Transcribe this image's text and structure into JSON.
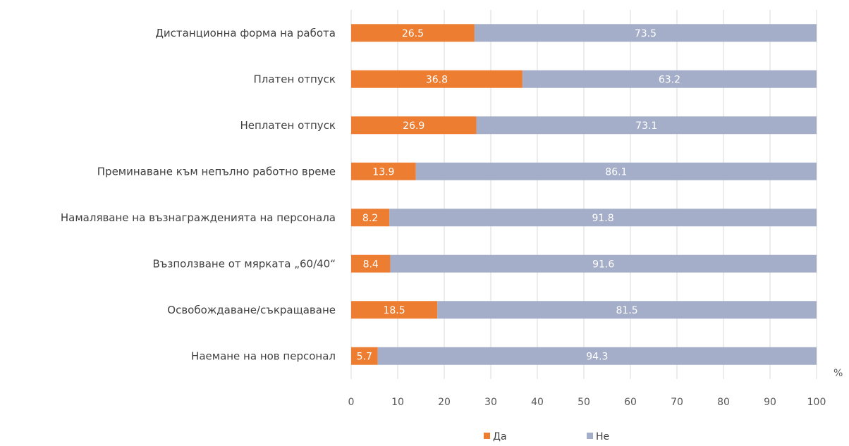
{
  "chart_data": {
    "type": "bar",
    "orientation": "horizontal",
    "stacked": true,
    "categories": [
      "Дистанционна форма на работа",
      "Платен отпуск",
      "Неплатен отпуск",
      "Преминаване към непълно работно време",
      "Намаляване на възнагражденията на персонала",
      "Възползване от мярката „60/40“",
      "Освобождаване/съкращаване",
      "Наемане на нов персонал"
    ],
    "series": [
      {
        "name": "Да",
        "color": "#ed7d31",
        "values": [
          26.5,
          36.8,
          26.9,
          13.9,
          8.2,
          8.4,
          18.5,
          5.7
        ]
      },
      {
        "name": "Не",
        "color": "#a5aec8",
        "values": [
          73.5,
          63.2,
          73.1,
          86.1,
          91.8,
          91.6,
          81.5,
          94.3
        ]
      }
    ],
    "xlim": [
      0,
      100
    ],
    "xticks": [
      "0",
      "10",
      "20",
      "30",
      "40",
      "50",
      "60",
      "70",
      "80",
      "90",
      "100"
    ],
    "xunit": "%",
    "grid": "vertical",
    "legend": "bottom",
    "data_labels": true
  }
}
